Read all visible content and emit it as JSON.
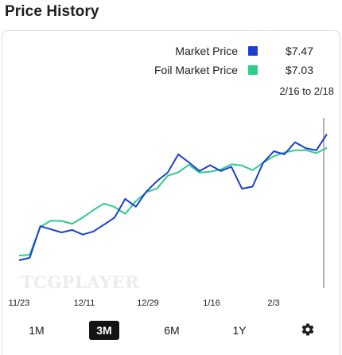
{
  "section": {
    "title": "Price History"
  },
  "legend": {
    "market": {
      "label": "Market Price",
      "value": "$7.47",
      "color": "#1a3fd1"
    },
    "foil": {
      "label": "Foil Market Price",
      "value": "$7.03",
      "color": "#2fcc8a"
    }
  },
  "date_range": "2/16 to 2/18",
  "watermark": "TCGPLAYER",
  "x_ticks": [
    "11/23",
    "12/11",
    "12/29",
    "1/16",
    "2/3"
  ],
  "range_buttons": {
    "one_month": "1M",
    "three_month": "3M",
    "six_month": "6M",
    "one_year": "1Y",
    "selected": "3M",
    "settings_icon": "gear-icon"
  },
  "chart_data": {
    "type": "line",
    "x": [
      "11/23",
      "11/26",
      "11/29",
      "12/2",
      "12/5",
      "12/8",
      "12/11",
      "12/14",
      "12/17",
      "12/20",
      "12/23",
      "12/26",
      "12/29",
      "1/1",
      "1/4",
      "1/7",
      "1/10",
      "1/13",
      "1/16",
      "1/19",
      "1/22",
      "1/25",
      "1/28",
      "1/31",
      "2/3",
      "2/6",
      "2/9",
      "2/12",
      "2/15",
      "2/18"
    ],
    "series": [
      {
        "name": "Market Price",
        "color": "#1a3fd1",
        "values": [
          3.4,
          3.48,
          4.5,
          4.4,
          4.3,
          4.38,
          4.23,
          4.33,
          4.55,
          4.78,
          5.38,
          5.13,
          5.62,
          5.96,
          6.23,
          6.82,
          6.56,
          6.28,
          6.47,
          6.28,
          6.42,
          5.71,
          5.78,
          6.55,
          6.92,
          6.82,
          7.21,
          7.02,
          6.95,
          7.47
        ]
      },
      {
        "name": "Foil Market Price",
        "color": "#2fcc8a",
        "values": [
          3.55,
          3.58,
          4.48,
          4.68,
          4.67,
          4.58,
          4.78,
          5.02,
          5.23,
          5.12,
          4.9,
          5.31,
          5.6,
          5.72,
          6.13,
          6.24,
          6.48,
          6.23,
          6.26,
          6.33,
          6.5,
          6.46,
          6.31,
          6.55,
          6.76,
          6.88,
          6.95,
          6.96,
          6.86,
          7.03
        ]
      }
    ],
    "ylim": [
      2.5,
      8.0
    ],
    "grid": false,
    "legend": "top-right"
  }
}
